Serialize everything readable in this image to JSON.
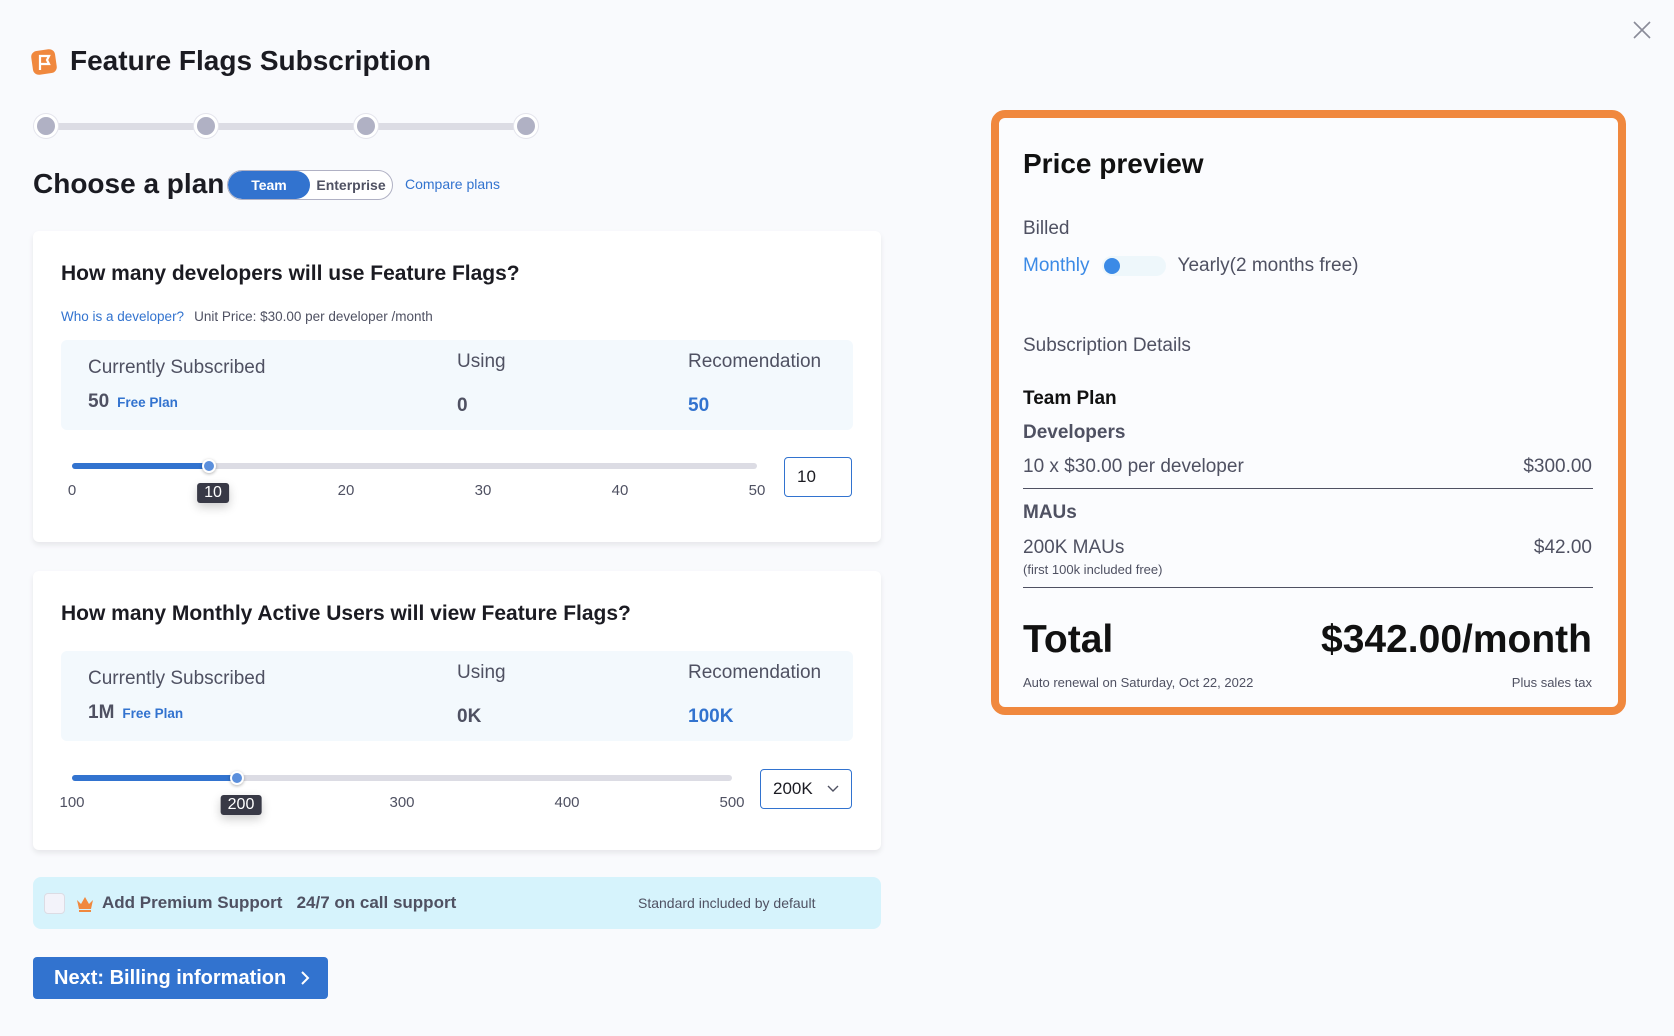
{
  "header": {
    "title": "Feature Flags Subscription",
    "logo_icon": "feature-flags-logo",
    "close_icon": "close-icon"
  },
  "stepper": {
    "steps": 4
  },
  "plan": {
    "heading": "Choose a plan",
    "options": [
      "Team",
      "Enterprise"
    ],
    "selected": "Team",
    "compare_link": "Compare plans"
  },
  "developers": {
    "question": "How many developers will use Feature Flags?",
    "help_link": "Who is a developer?",
    "unit_price": "Unit Price: $30.00 per developer /month",
    "subscribed_label": "Currently Subscribed",
    "subscribed_value": "50",
    "subscribed_plan": "Free Plan",
    "using_label": "Using",
    "using_value": "0",
    "recommendation_label": "Recomendation",
    "recommendation_value": "50",
    "slider": {
      "min": 0,
      "max": 50,
      "value": 10,
      "value_label": "10",
      "ticks": [
        "0",
        "10",
        "20",
        "30",
        "40",
        "50"
      ]
    },
    "input_value": "10"
  },
  "maus": {
    "question": "How many Monthly Active Users will view Feature Flags?",
    "subscribed_label": "Currently Subscribed",
    "subscribed_value": "1M",
    "subscribed_plan": "Free Plan",
    "using_label": "Using",
    "using_value": "0K",
    "recommendation_label": "Recomendation",
    "recommendation_value": "100K",
    "slider": {
      "min": 100,
      "max": 500,
      "value": 200,
      "value_label": "200",
      "ticks": [
        "100",
        "200",
        "300",
        "400",
        "500"
      ]
    },
    "dropdown_value": "200K"
  },
  "support": {
    "label": "Add Premium Support",
    "detail": "24/7 on call support",
    "note": "Standard included by default",
    "checked": false,
    "icon": "crown-icon"
  },
  "next_button": "Next: Billing information",
  "preview": {
    "title": "Price preview",
    "billed_label": "Billed",
    "monthly": "Monthly",
    "yearly": "Yearly(2 months free)",
    "billing": "Monthly",
    "details_label": "Subscription Details",
    "plan_name": "Team Plan",
    "developers_label": "Developers",
    "developers_line": "10 x $30.00 per developer",
    "developers_price": "$300.00",
    "maus_label": "MAUs",
    "maus_line": "200K MAUs",
    "maus_note": "(first 100k included free)",
    "maus_price": "$42.00",
    "total_label": "Total",
    "total_value": "$342.00/month",
    "renewal": "Auto renewal on Saturday, Oct 22, 2022",
    "tax_note": "Plus sales tax"
  },
  "colors": {
    "accent": "#3273cf",
    "highlight": "#f0883e",
    "support_bg": "#d6f3fc"
  }
}
